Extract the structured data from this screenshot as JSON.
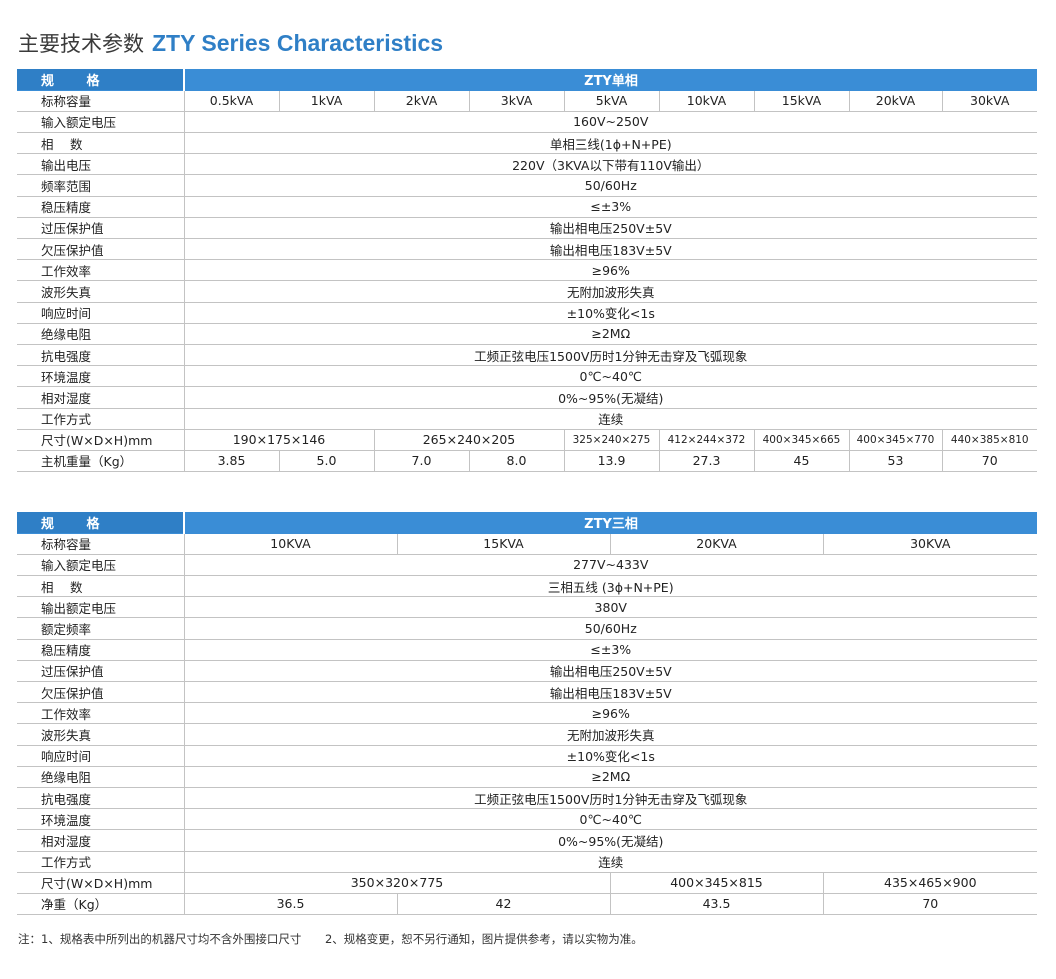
{
  "title": {
    "cn": "主要技术参数",
    "en": "ZTY Series Characteristics"
  },
  "single": {
    "spec_label": "规 格",
    "title": "ZTY单相",
    "capacity_label": "标称容量",
    "capacities": [
      "0.5kVA",
      "1kVA",
      "2kVA",
      "3kVA",
      "5kVA",
      "10kVA",
      "15kVA",
      "20kVA",
      "30kVA"
    ],
    "rows": [
      {
        "label": "输入额定电压",
        "value": "160V~250V"
      },
      {
        "label": "相　 数",
        "value": "单相三线(1ϕ+N+PE)"
      },
      {
        "label": "输出电压",
        "value": "220V（3KVA以下带有110V输出）"
      },
      {
        "label": "频率范围",
        "value": "50/60Hz"
      },
      {
        "label": "稳压精度",
        "value": "≤±3%"
      },
      {
        "label": "过压保护值",
        "value": "输出相电压250V±5V"
      },
      {
        "label": "欠压保护值",
        "value": "输出相电压183V±5V"
      },
      {
        "label": "工作效率",
        "value": "≥96%"
      },
      {
        "label": "波形失真",
        "value": "无附加波形失真"
      },
      {
        "label": "响应时间",
        "value": "±10%变化<1s"
      },
      {
        "label": "绝缘电阻",
        "value": "≥2MΩ"
      },
      {
        "label": "抗电强度",
        "value": "工频正弦电压1500V历时1分钟无击穿及飞弧现象"
      },
      {
        "label": "环境温度",
        "value": "0℃~40℃"
      },
      {
        "label": "相对湿度",
        "value": "0%~95%(无凝结)"
      },
      {
        "label": "工作方式",
        "value": "连续"
      }
    ],
    "size_label": "尺寸(W×D×H)mm",
    "sizes": [
      "190×175×146",
      "265×240×205",
      "325×240×275",
      "412×244×372",
      "400×345×665",
      "400×345×770",
      "440×385×810"
    ],
    "weight_label": "主机重量（Kg）",
    "weights": [
      "3.85",
      "5.0",
      "7.0",
      "8.0",
      "13.9",
      "27.3",
      "45",
      "53",
      "70"
    ]
  },
  "three": {
    "spec_label": "规 格",
    "title": "ZTY三相",
    "capacity_label": "标称容量",
    "capacities": [
      "10KVA",
      "15KVA",
      "20KVA",
      "30KVA"
    ],
    "rows": [
      {
        "label": "输入额定电压",
        "value": "277V~433V"
      },
      {
        "label": "相　 数",
        "value": "三相五线 (3ϕ+N+PE)"
      },
      {
        "label": "输出额定电压",
        "value": "380V"
      },
      {
        "label": "额定频率",
        "value": "50/60Hz"
      },
      {
        "label": "稳压精度",
        "value": "≤±3%"
      },
      {
        "label": "过压保护值",
        "value": "输出相电压250V±5V"
      },
      {
        "label": "欠压保护值",
        "value": "输出相电压183V±5V"
      },
      {
        "label": "工作效率",
        "value": "≥96%"
      },
      {
        "label": "波形失真",
        "value": "无附加波形失真"
      },
      {
        "label": "响应时间",
        "value": "±10%变化<1s"
      },
      {
        "label": "绝缘电阻",
        "value": "≥2MΩ"
      },
      {
        "label": "抗电强度",
        "value": "工频正弦电压1500V历时1分钟无击穿及飞弧现象"
      },
      {
        "label": "环境温度",
        "value": "0℃~40℃"
      },
      {
        "label": "相对湿度",
        "value": "0%~95%(无凝结)"
      },
      {
        "label": "工作方式",
        "value": "连续"
      }
    ],
    "size_label": "尺寸(W×D×H)mm",
    "sizes": [
      "350×320×775",
      "400×345×815",
      "435×465×900"
    ],
    "weight_label": "净重（Kg）",
    "weights": [
      "36.5",
      "42",
      "43.5",
      "70"
    ]
  },
  "notes": [
    "注：1、规格表中所列出的机器尺寸均不含外围接口尺寸",
    "2、规格变更，恕不另行通知，图片提供参考，请以实物为准。"
  ]
}
